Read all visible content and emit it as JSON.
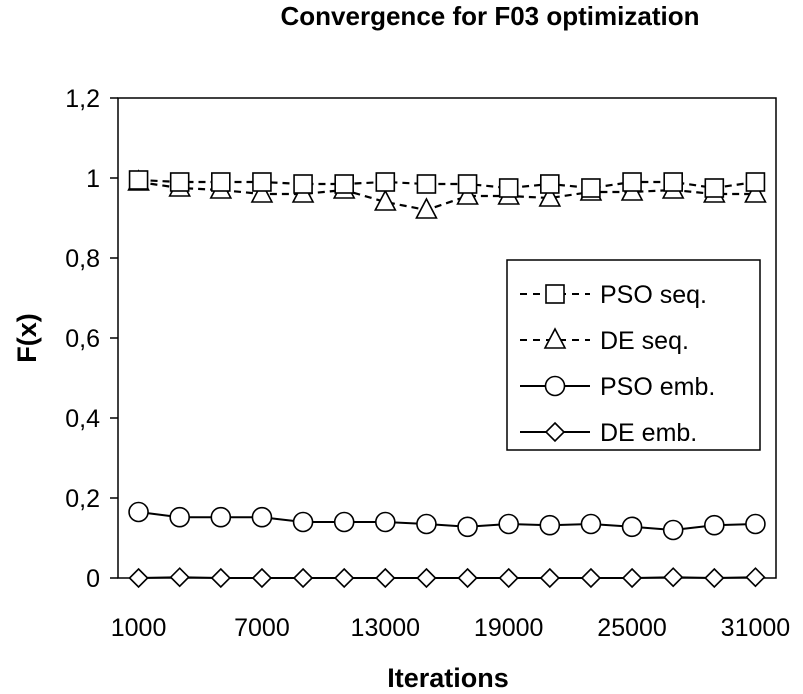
{
  "chart_data": {
    "type": "line",
    "title": "Convergence for F03 optimization",
    "xlabel": "Iterations",
    "ylabel": "F(x)",
    "ylim": [
      0,
      1.2
    ],
    "y_ticks": [
      "0",
      "0,2",
      "0,4",
      "0,6",
      "0,8",
      "1",
      "1,2"
    ],
    "x_tick_labels": [
      "1000",
      "7000",
      "13000",
      "19000",
      "25000",
      "31000"
    ],
    "x": [
      1000,
      3000,
      5000,
      7000,
      9000,
      11000,
      13000,
      15000,
      17000,
      19000,
      21000,
      23000,
      25000,
      27000,
      29000,
      31000
    ],
    "series": [
      {
        "name": "PSO seq.",
        "marker": "square",
        "line": "dashed",
        "values": [
          0.995,
          0.99,
          0.99,
          0.99,
          0.985,
          0.985,
          0.99,
          0.985,
          0.985,
          0.975,
          0.985,
          0.975,
          0.99,
          0.99,
          0.975,
          0.99
        ]
      },
      {
        "name": "DE seq.",
        "marker": "triangle",
        "line": "dashed",
        "values": [
          0.99,
          0.975,
          0.97,
          0.96,
          0.96,
          0.97,
          0.94,
          0.92,
          0.955,
          0.955,
          0.95,
          0.965,
          0.965,
          0.97,
          0.96,
          0.96
        ]
      },
      {
        "name": "PSO emb.",
        "marker": "circle",
        "line": "solid",
        "values": [
          0.165,
          0.152,
          0.152,
          0.152,
          0.14,
          0.14,
          0.14,
          0.135,
          0.128,
          0.135,
          0.132,
          0.135,
          0.128,
          0.12,
          0.132,
          0.135
        ]
      },
      {
        "name": "DE emb.",
        "marker": "diamond",
        "line": "solid",
        "values": [
          0,
          0.002,
          0,
          0,
          0,
          0,
          0,
          0,
          0,
          0,
          0,
          0,
          0,
          0.002,
          0,
          0.002
        ]
      }
    ],
    "legend": "right-middle",
    "grid": false
  }
}
